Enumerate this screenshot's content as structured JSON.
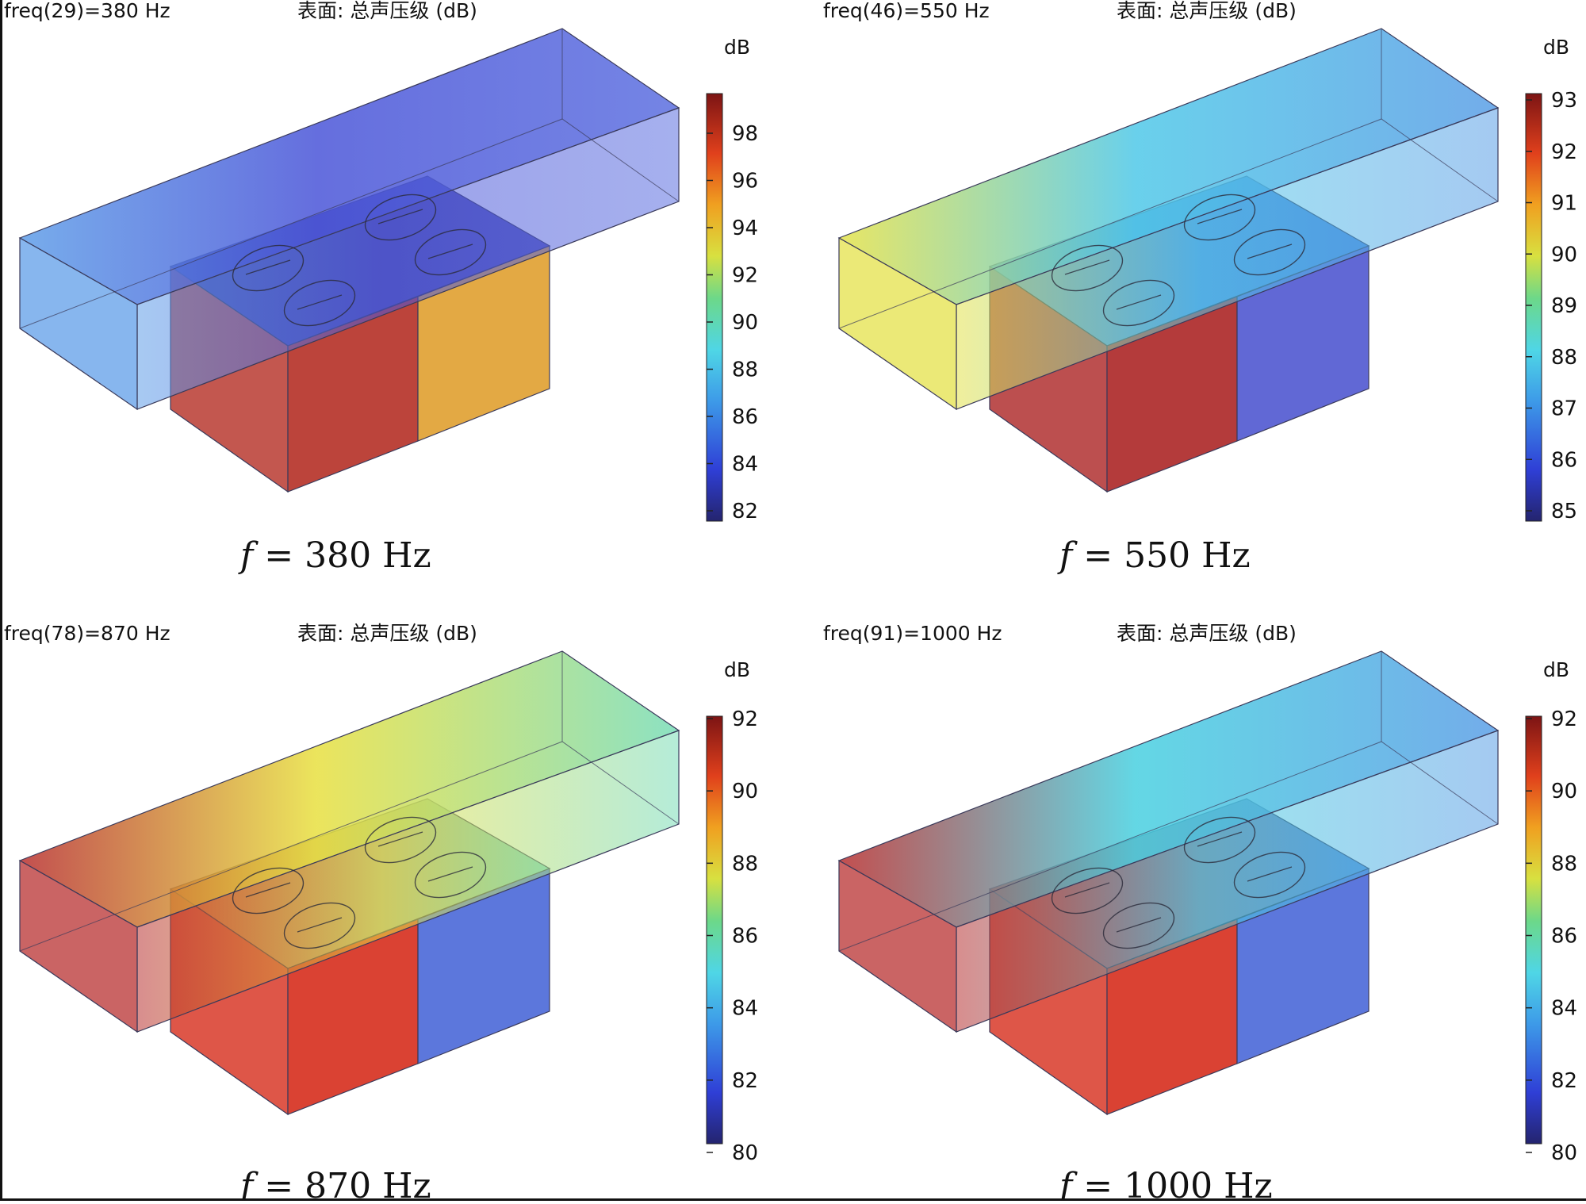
{
  "panels": [
    {
      "freq_label": "freq(29)=380 Hz",
      "surface_label": "表面: 总声压级 (dB)",
      "unit": "dB",
      "caption_var": "f",
      "caption_rest": " = 380 Hz",
      "ticks": [
        "98",
        "96",
        "94",
        "92",
        "90",
        "88",
        "86",
        "84",
        "82"
      ],
      "colors": {
        "duct_end_left": "#5f9ee8",
        "duct_mid": "#4a55d8",
        "duct_end_right": "#5c6fe0",
        "box_top_left": "#2a2a9a",
        "box_top_right": "#3b3bb0",
        "box_front_left": "#b83a30",
        "box_front_right": "#e0a030"
      }
    },
    {
      "freq_label": "freq(46)=550 Hz",
      "surface_label": "表面: 总声压级 (dB)",
      "unit": "dB",
      "caption_var": "f",
      "caption_rest": " = 550 Hz",
      "ticks": [
        "93",
        "92",
        "91",
        "90",
        "89",
        "88",
        "87",
        "86",
        "85"
      ],
      "colors": {
        "duct_end_left": "#e4e24a",
        "duct_mid": "#4fc8e8",
        "duct_end_right": "#5a9ee6",
        "box_top_left": "#4a8ed8",
        "box_top_right": "#2f6fd8",
        "box_front_left": "#b03030",
        "box_front_right": "#5058d0"
      }
    },
    {
      "freq_label": "freq(78)=870 Hz",
      "surface_label": "表面: 总声压级 (dB)",
      "unit": "dB",
      "caption_var": "f",
      "caption_rest": " = 870 Hz",
      "ticks": [
        "92",
        "90",
        "88",
        "86",
        "84",
        "82",
        "80"
      ],
      "colors": {
        "duct_end_left": "#b83030",
        "duct_mid": "#e8e040",
        "duct_end_right": "#78dcb8",
        "box_top_left": "#e06020",
        "box_top_right": "#6ed4c0",
        "box_front_left": "#d83828",
        "box_front_right": "#4a68d8"
      }
    },
    {
      "freq_label": "freq(91)=1000 Hz",
      "surface_label": "表面: 总声压级 (dB)",
      "unit": "dB",
      "caption_var": "f",
      "caption_rest": " = 1000 Hz",
      "ticks": [
        "92",
        "90",
        "88",
        "86",
        "84",
        "82",
        "80"
      ],
      "colors": {
        "duct_end_left": "#b83030",
        "duct_mid": "#48d0e0",
        "duct_end_right": "#5a9ee6",
        "box_top_left": "#d83820",
        "box_top_right": "#3a80d8",
        "box_front_left": "#d83828",
        "box_front_right": "#4a68d8"
      }
    }
  ]
}
